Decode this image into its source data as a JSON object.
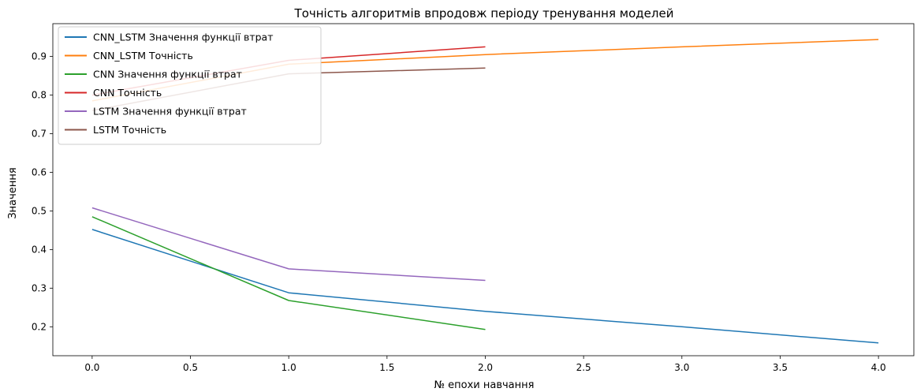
{
  "chart_data": {
    "type": "line",
    "title": "Точність алгоритмів впродовж періоду тренування моделей",
    "xlabel": "№ епохи навчання",
    "ylabel": "Значення",
    "xlim": [
      -0.2,
      4.18
    ],
    "ylim": [
      0.125,
      0.985
    ],
    "xticks": [
      0.0,
      0.5,
      1.0,
      1.5,
      2.0,
      2.5,
      3.0,
      3.5,
      4.0
    ],
    "xtick_labels": [
      "0.0",
      "0.5",
      "1.0",
      "1.5",
      "2.0",
      "2.5",
      "3.0",
      "3.5",
      "4.0"
    ],
    "yticks": [
      0.2,
      0.3,
      0.4,
      0.5,
      0.6,
      0.7,
      0.8,
      0.9
    ],
    "ytick_labels": [
      "0.2",
      "0.3",
      "0.4",
      "0.5",
      "0.6",
      "0.7",
      "0.8",
      "0.9"
    ],
    "grid": false,
    "legend_position": "upper-left",
    "series": [
      {
        "name": "CNN_LSTM Значення функції втрат",
        "color": "#1f77b4",
        "x": [
          0,
          1,
          2,
          3,
          4
        ],
        "values": [
          0.452,
          0.288,
          0.24,
          0.2,
          0.158
        ]
      },
      {
        "name": "CNN_LSTM Точність",
        "color": "#ff7f0e",
        "x": [
          0,
          1,
          2,
          3,
          4
        ],
        "values": [
          0.785,
          0.88,
          0.905,
          0.925,
          0.944
        ]
      },
      {
        "name": "CNN Значення функції втрат",
        "color": "#2ca02c",
        "x": [
          0,
          1,
          2
        ],
        "values": [
          0.485,
          0.268,
          0.193
        ]
      },
      {
        "name": "CNN Точність",
        "color": "#d62728",
        "x": [
          0,
          1,
          2
        ],
        "values": [
          0.8,
          0.89,
          0.925
        ]
      },
      {
        "name": "LSTM Значення функції втрат",
        "color": "#9467bd",
        "x": [
          0,
          1,
          2
        ],
        "values": [
          0.508,
          0.35,
          0.32
        ]
      },
      {
        "name": "LSTM Точність",
        "color": "#8c564b",
        "x": [
          0,
          1,
          2
        ],
        "values": [
          0.76,
          0.855,
          0.87
        ]
      }
    ]
  }
}
